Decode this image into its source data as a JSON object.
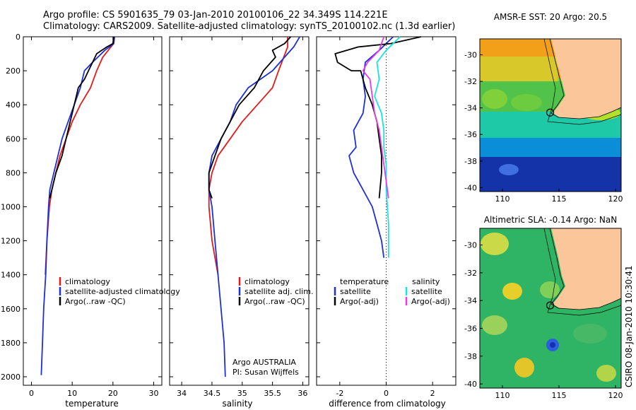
{
  "header": {
    "line1": "Argo profile: CS 5901635_79 03-Jan-2010 20100106_22 34.349S 114.221E",
    "line2": "Climatology: CARS2009. Satellite-adjusted climatology: synTS_20100102.nc (1.3d earlier)"
  },
  "colors": {
    "climatology": "#e11b1b",
    "satellite": "#1f2fd6",
    "argo": "#000000",
    "sat_salinity": "#18e3e3",
    "argo_adj_salinity": "#e63be6",
    "land": "#fbc79a"
  },
  "chart_data": [
    {
      "type": "line",
      "name": "temperature-profile",
      "xlabel": "temperature",
      "ylabel": "",
      "xlim": [
        -2,
        32
      ],
      "ylim": [
        2050,
        0
      ],
      "x_ticks": [
        0,
        10,
        20,
        30
      ],
      "y_ticks": [
        0,
        200,
        400,
        600,
        800,
        1000,
        1200,
        1400,
        1600,
        1800,
        2000
      ],
      "legend": [
        "climatology",
        "satellite-adjusted climatology",
        "Argo(..raw -QC)"
      ],
      "series": [
        {
          "name": "climatology",
          "color": "#e11b1b",
          "points": [
            [
              20.2,
              40
            ],
            [
              19.5,
              60
            ],
            [
              17.5,
              120
            ],
            [
              16,
              200
            ],
            [
              14.5,
              300
            ],
            [
              12,
              400
            ],
            [
              10,
              500
            ],
            [
              8.5,
              600
            ],
            [
              7,
              700
            ],
            [
              6,
              800
            ],
            [
              5,
              900
            ],
            [
              4.4,
              1000
            ],
            [
              3.8,
              1200
            ],
            [
              3.4,
              1400
            ]
          ]
        },
        {
          "name": "satellite-adjusted climatology",
          "color": "#1f2fd6",
          "points": [
            [
              20.4,
              0
            ],
            [
              20.2,
              40
            ],
            [
              18,
              80
            ],
            [
              15,
              150
            ],
            [
              13,
              200
            ],
            [
              12,
              300
            ],
            [
              10.5,
              400
            ],
            [
              9,
              500
            ],
            [
              7.5,
              600
            ],
            [
              6.5,
              700
            ],
            [
              5.5,
              800
            ],
            [
              4.5,
              900
            ],
            [
              4.2,
              1000
            ],
            [
              3.8,
              1200
            ],
            [
              3.5,
              1400
            ],
            [
              3,
              1600
            ],
            [
              2.7,
              1800
            ],
            [
              2.4,
              1990
            ]
          ]
        },
        {
          "name": "Argo(..raw -QC)",
          "color": "#000000",
          "points": [
            [
              20.2,
              0
            ],
            [
              20,
              40
            ],
            [
              18.5,
              60
            ],
            [
              16,
              100
            ],
            [
              15,
              150
            ],
            [
              14,
              200
            ],
            [
              13,
              250
            ],
            [
              11.5,
              300
            ],
            [
              10.5,
              400
            ],
            [
              9.5,
              500
            ],
            [
              8.5,
              600
            ],
            [
              7.5,
              700
            ],
            [
              6,
              800
            ],
            [
              5,
              900
            ],
            [
              4.5,
              950
            ]
          ]
        }
      ]
    },
    {
      "type": "line",
      "name": "salinity-profile",
      "xlabel": "salinity",
      "ylabel": "",
      "xlim": [
        33.8,
        36.1
      ],
      "ylim": [
        2050,
        0
      ],
      "x_ticks": [
        34,
        34.5,
        35,
        35.5,
        36
      ],
      "x_tick_labels": [
        "34",
        "34.5",
        "35",
        "35.5",
        "36"
      ],
      "legend": [
        "climatology",
        "satellite adj. clim.",
        "Argo(..raw -QC)"
      ],
      "annotation": [
        "Argo AUSTRALIA",
        "PI: Susan Wijffels"
      ],
      "series": [
        {
          "name": "climatology",
          "color": "#e11b1b",
          "points": [
            [
              35.75,
              0
            ],
            [
              35.75,
              60
            ],
            [
              35.6,
              200
            ],
            [
              35.5,
              300
            ],
            [
              35.25,
              400
            ],
            [
              35,
              500
            ],
            [
              34.8,
              600
            ],
            [
              34.6,
              700
            ],
            [
              34.5,
              800
            ],
            [
              34.45,
              900
            ],
            [
              34.45,
              1000
            ],
            [
              34.5,
              1200
            ],
            [
              34.6,
              1400
            ]
          ]
        },
        {
          "name": "satellite adj. clim.",
          "color": "#1f2fd6",
          "points": [
            [
              35.95,
              0
            ],
            [
              35.85,
              60
            ],
            [
              35.5,
              200
            ],
            [
              35.1,
              300
            ],
            [
              34.9,
              400
            ],
            [
              34.8,
              500
            ],
            [
              34.65,
              600
            ],
            [
              34.5,
              700
            ],
            [
              34.45,
              800
            ],
            [
              34.45,
              900
            ],
            [
              34.5,
              1000
            ],
            [
              34.55,
              1200
            ],
            [
              34.6,
              1400
            ],
            [
              34.65,
              1600
            ],
            [
              34.7,
              1800
            ],
            [
              34.72,
              2000
            ]
          ]
        },
        {
          "name": "Argo(..raw -QC)",
          "color": "#000000",
          "points": [
            [
              35.8,
              0
            ],
            [
              35.7,
              40
            ],
            [
              35.5,
              80
            ],
            [
              35.55,
              120
            ],
            [
              35.35,
              200
            ],
            [
              35.2,
              300
            ],
            [
              34.95,
              400
            ],
            [
              34.8,
              500
            ],
            [
              34.65,
              600
            ],
            [
              34.55,
              700
            ],
            [
              34.45,
              800
            ],
            [
              34.45,
              900
            ],
            [
              34.5,
              950
            ]
          ]
        }
      ]
    },
    {
      "type": "line",
      "name": "difference-profile",
      "xlabel": "difference from climatology",
      "ylabel": "",
      "xlim": [
        -3,
        3
      ],
      "ylim": [
        2050,
        0
      ],
      "x_ticks": [
        -2,
        0,
        2
      ],
      "legend_headers": [
        "temperature",
        "salinity"
      ],
      "legend": [
        "satellite",
        "Argo(-adj)",
        "satellite",
        "Argo(-adj)"
      ],
      "series": [
        {
          "name": "satellite",
          "group": "temperature",
          "color": "#1f2fd6",
          "points": [
            [
              0.3,
              0
            ],
            [
              -0.3,
              80
            ],
            [
              -0.9,
              150
            ],
            [
              -1,
              250
            ],
            [
              -0.9,
              350
            ],
            [
              -1,
              450
            ],
            [
              -1.4,
              550
            ],
            [
              -1.3,
              650
            ],
            [
              -1.6,
              700
            ],
            [
              -1.4,
              800
            ],
            [
              -1,
              900
            ],
            [
              -0.6,
              1000
            ],
            [
              -0.4,
              1100
            ],
            [
              -0.2,
              1200
            ],
            [
              -0.1,
              1300
            ],
            [
              -0.1,
              1300
            ]
          ]
        },
        {
          "name": "Argo(-adj)",
          "group": "temperature",
          "color": "#000000",
          "points": [
            [
              1.5,
              0
            ],
            [
              0.2,
              40
            ],
            [
              -1.2,
              60
            ],
            [
              -2.2,
              100
            ],
            [
              -2.1,
              150
            ],
            [
              -1.5,
              200
            ],
            [
              -1.1,
              200
            ],
            [
              -0.9,
              300
            ],
            [
              -0.6,
              400
            ],
            [
              -0.4,
              500
            ],
            [
              -0.3,
              600
            ],
            [
              -0.2,
              700
            ],
            [
              -0.2,
              800
            ],
            [
              -0.3,
              950
            ]
          ]
        },
        {
          "name": "satellite",
          "group": "salinity",
          "color": "#18e3e3",
          "points": [
            [
              0.6,
              0
            ],
            [
              0,
              80
            ],
            [
              -0.4,
              150
            ],
            [
              -0.3,
              250
            ],
            [
              -0.5,
              350
            ],
            [
              -0.2,
              450
            ],
            [
              -0.1,
              550
            ],
            [
              -0.1,
              650
            ],
            [
              0,
              750
            ],
            [
              0,
              900
            ],
            [
              0.1,
              1100
            ],
            [
              0.1,
              1300
            ]
          ]
        },
        {
          "name": "Argo(-adj)",
          "group": "salinity",
          "color": "#e63be6",
          "points": [
            [
              -0.1,
              0
            ],
            [
              -0.3,
              80
            ],
            [
              -0.8,
              150
            ],
            [
              -1,
              200
            ],
            [
              -0.7,
              250
            ],
            [
              -0.6,
              350
            ],
            [
              -0.5,
              450
            ],
            [
              -0.3,
              550
            ],
            [
              -0.2,
              650
            ],
            [
              -0.1,
              750
            ],
            [
              0,
              850
            ],
            [
              0.1,
              950
            ]
          ]
        }
      ]
    },
    {
      "type": "heatmap",
      "name": "sst-map",
      "title": "AMSR-E SST: 20 Argo: 20.5",
      "xlim": [
        108,
        120.5
      ],
      "ylim": [
        -40.3,
        -28.8
      ],
      "x_ticks": [
        110,
        115,
        120
      ],
      "y_ticks": [
        -30,
        -32,
        -34,
        -36,
        -38,
        -40
      ],
      "float_position": [
        114.221,
        -34.349
      ]
    },
    {
      "type": "heatmap",
      "name": "sla-map",
      "title": "Altimetric SLA: -0.14 Argo: NaN",
      "xlim": [
        108,
        120.5
      ],
      "ylim": [
        -40.3,
        -28.8
      ],
      "x_ticks": [
        110,
        115,
        120
      ],
      "y_ticks": [
        -30,
        -32,
        -34,
        -36,
        -38,
        -40
      ],
      "float_position": [
        114.221,
        -34.349
      ]
    }
  ],
  "footer": {
    "stamp": "CSIRO 08-Jan-2010 10:30:41"
  }
}
